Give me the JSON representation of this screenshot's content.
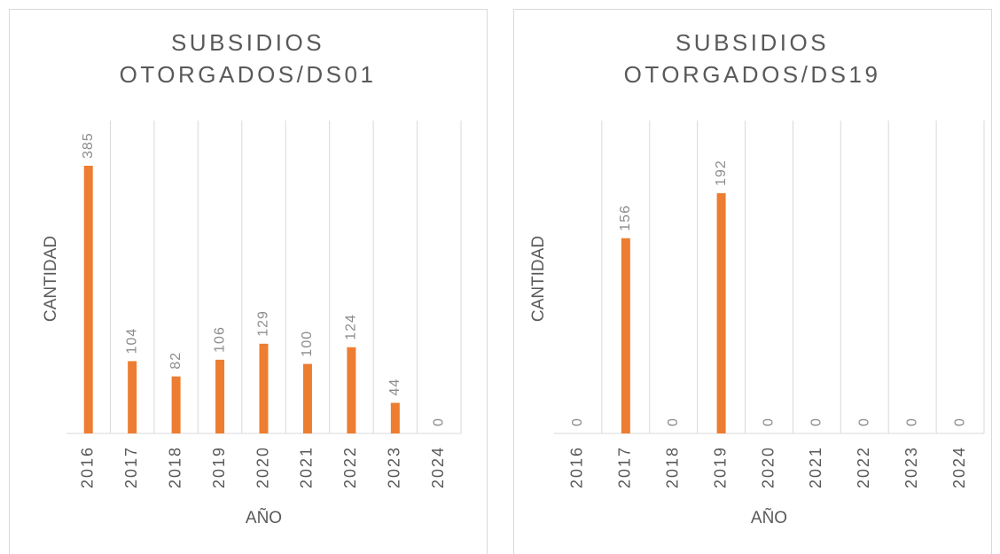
{
  "chart_data": [
    {
      "type": "bar",
      "title": "SUBSIDIOS OTORGADOS/DS01",
      "x_label": "AÑO",
      "y_label": "CANTIDAD",
      "categories": [
        "2016",
        "2017",
        "2018",
        "2019",
        "2020",
        "2021",
        "2022",
        "2023",
        "2024"
      ],
      "values": [
        385,
        104,
        82,
        106,
        129,
        100,
        124,
        44,
        0
      ],
      "color": "#ed7d31",
      "ylim": [
        0,
        450
      ],
      "grid": true
    },
    {
      "type": "bar",
      "title": "SUBSIDIOS OTORGADOS/DS19",
      "x_label": "AÑO",
      "y_label": "CANTIDAD",
      "categories": [
        "2016",
        "2017",
        "2018",
        "2019",
        "2020",
        "2021",
        "2022",
        "2023",
        "2024"
      ],
      "values": [
        0,
        156,
        0,
        192,
        0,
        0,
        0,
        0,
        0
      ],
      "color": "#ed7d31",
      "ylim": [
        0,
        250
      ],
      "grid": true
    }
  ]
}
